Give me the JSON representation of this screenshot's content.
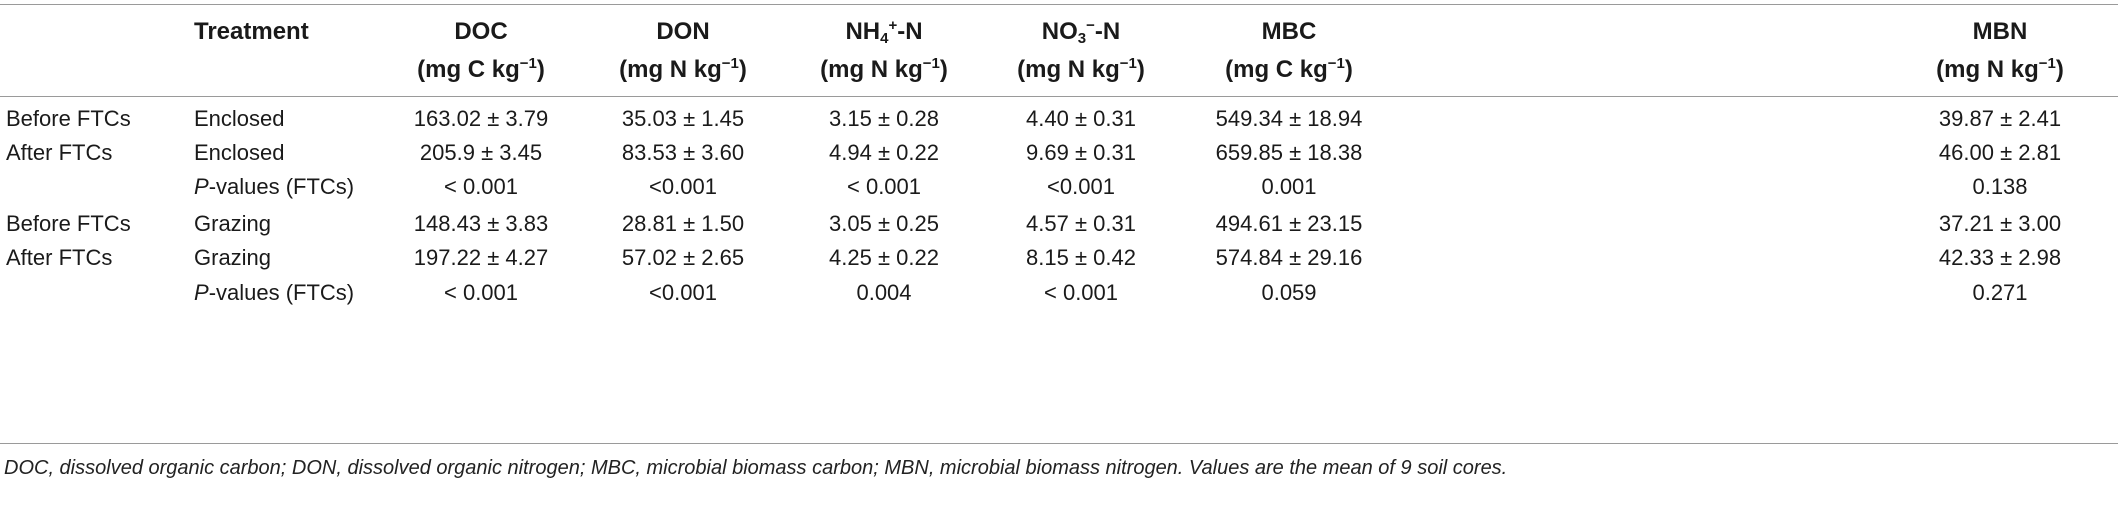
{
  "headers": {
    "treatment": "Treatment",
    "doc": {
      "name": "DOC",
      "unit_pre": "(mg C kg",
      "unit_sup": "−1",
      "unit_post": ")"
    },
    "don": {
      "name": "DON",
      "unit_pre": "(mg N kg",
      "unit_sup": "−1",
      "unit_post": ")"
    },
    "nh4": {
      "base": "NH",
      "sub": "4",
      "sup": "+",
      "tail": "-N",
      "unit_pre": "(mg N kg",
      "unit_sup": "−1",
      "unit_post": ")"
    },
    "no3": {
      "base": "NO",
      "sub": "3",
      "sup": "−",
      "tail": "-N",
      "unit_pre": "(mg N kg",
      "unit_sup": "−1",
      "unit_post": ")"
    },
    "mbc": {
      "name": "MBC",
      "unit_pre": "(mg C kg",
      "unit_sup": "−1",
      "unit_post": ")"
    },
    "mbn": {
      "name": "MBN",
      "unit_pre": "(mg N kg",
      "unit_sup": "−1",
      "unit_post": ")"
    }
  },
  "rows": [
    {
      "period": "Before FTCs",
      "treatment": "Enclosed",
      "doc": "163.02 ± 3.79",
      "don": "35.03 ± 1.45",
      "nh4": "3.15 ± 0.28",
      "no3": "4.40 ± 0.31",
      "mbc": "549.34 ± 18.94",
      "mbn": "39.87 ± 2.41"
    },
    {
      "period": "After FTCs",
      "treatment": "Enclosed",
      "doc": "205.9 ± 3.45",
      "don": "83.53 ± 3.60",
      "nh4": "4.94 ± 0.22",
      "no3": "9.69 ± 0.31",
      "mbc": "659.85 ± 18.38",
      "mbn": "46.00 ± 2.81"
    },
    {
      "period": "",
      "treatment_p": "P",
      "treatment_rest": "-values (FTCs)",
      "doc": "< 0.001",
      "don": "<0.001",
      "nh4": "< 0.001",
      "no3": "<0.001",
      "mbc": "0.001",
      "mbn": "0.138"
    },
    {
      "period": "Before FTCs",
      "treatment": "Grazing",
      "doc": "148.43 ± 3.83",
      "don": "28.81 ± 1.50",
      "nh4": "3.05 ± 0.25",
      "no3": "4.57 ± 0.31",
      "mbc": "494.61 ± 23.15",
      "mbn": "37.21 ± 3.00"
    },
    {
      "period": "After FTCs",
      "treatment": "Grazing",
      "doc": "197.22 ± 4.27",
      "don": "57.02 ± 2.65",
      "nh4": "4.25 ± 0.22",
      "no3": "8.15 ± 0.42",
      "mbc": "574.84 ± 29.16",
      "mbn": "42.33 ± 2.98"
    },
    {
      "period": "",
      "treatment_p": "P",
      "treatment_rest": "-values (FTCs)",
      "doc": "< 0.001",
      "don": "<0.001",
      "nh4": "0.004",
      "no3": "< 0.001",
      "mbc": "0.059",
      "mbn": "0.271"
    }
  ],
  "footnote": "DOC, dissolved organic carbon; DON, dissolved organic nitrogen; MBC, microbial biomass carbon; MBN, microbial biomass nitrogen. Values are the mean of 9 soil cores."
}
